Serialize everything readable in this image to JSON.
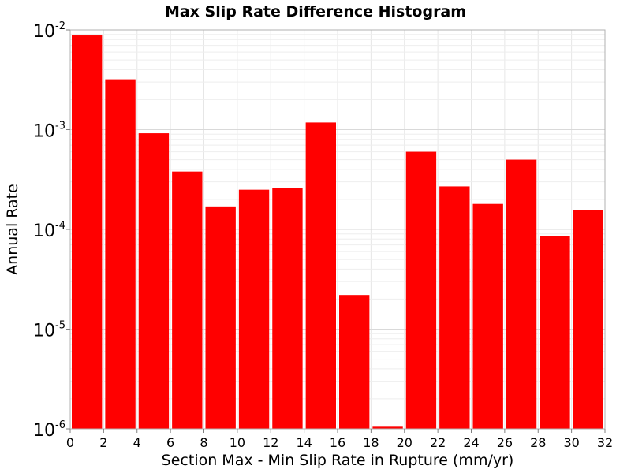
{
  "chart_data": {
    "type": "bar",
    "title": "Max Slip Rate Difference Histogram",
    "xlabel": "Section Max - Min Slip Rate in Rupture (mm/yr)",
    "ylabel": "Annual Rate",
    "x_scale": "linear",
    "y_scale": "log",
    "xlim": [
      0,
      32
    ],
    "ylim": [
      1e-06,
      0.01
    ],
    "x_ticks": [
      0,
      2,
      4,
      6,
      8,
      10,
      12,
      14,
      16,
      18,
      20,
      22,
      24,
      26,
      28,
      30,
      32
    ],
    "y_ticks": [
      {
        "value": 1e-06,
        "base": "10",
        "exponent": "-6"
      },
      {
        "value": 1e-05,
        "base": "10",
        "exponent": "-5"
      },
      {
        "value": 0.0001,
        "base": "10",
        "exponent": "-4"
      },
      {
        "value": 0.001,
        "base": "10",
        "exponent": "-3"
      },
      {
        "value": 0.01,
        "base": "10",
        "exponent": "-2"
      }
    ],
    "grid": true,
    "bar_color": "#ff0000",
    "bin_width": 2,
    "bars": [
      {
        "x": 1,
        "value": 0.0088
      },
      {
        "x": 3,
        "value": 0.0032
      },
      {
        "x": 5,
        "value": 0.00092
      },
      {
        "x": 7,
        "value": 0.00038
      },
      {
        "x": 9,
        "value": 0.00017
      },
      {
        "x": 11,
        "value": 0.00025
      },
      {
        "x": 13,
        "value": 0.00026
      },
      {
        "x": 15,
        "value": 0.00118
      },
      {
        "x": 17,
        "value": 2.2e-05
      },
      {
        "x": 19,
        "value": 1.05e-06
      },
      {
        "x": 21,
        "value": 0.0006
      },
      {
        "x": 23,
        "value": 0.00027
      },
      {
        "x": 25,
        "value": 0.00018
      },
      {
        "x": 27,
        "value": 0.0005
      },
      {
        "x": 29,
        "value": 8.6e-05
      },
      {
        "x": 31,
        "value": 0.000155
      }
    ]
  }
}
